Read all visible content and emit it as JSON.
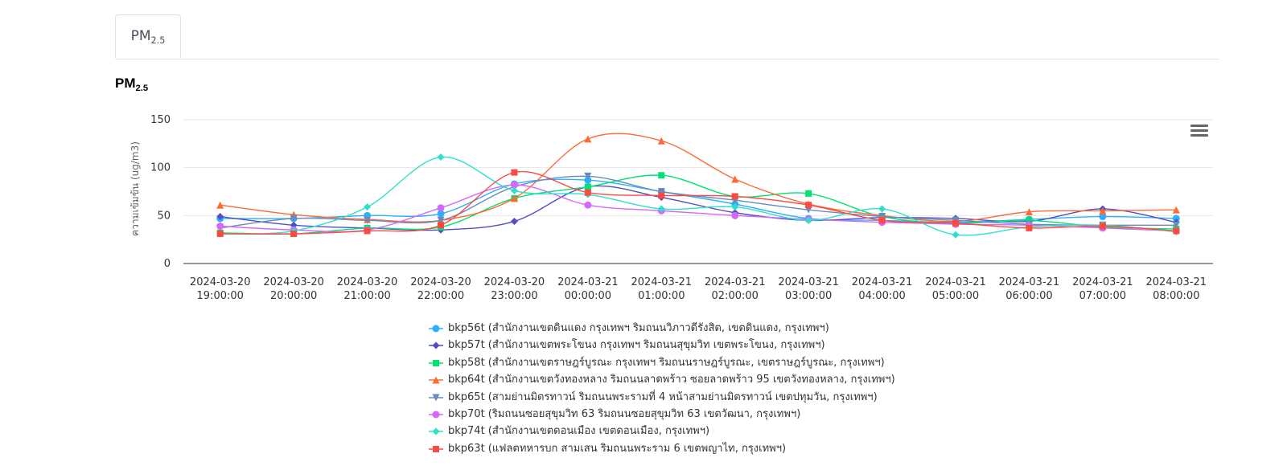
{
  "tab": {
    "label_base": "PM",
    "label_sub": "2.5"
  },
  "title": {
    "base": "PM",
    "sub": "2.5"
  },
  "chart_data": {
    "type": "line",
    "ylabel": "ความเข้มข้น (ug/m3)",
    "ylim": [
      0,
      150
    ],
    "yticks": [
      0,
      50,
      100,
      150
    ],
    "grid": true,
    "legend_position": "bottom",
    "categories": [
      [
        "2024-03-20",
        "19:00:00"
      ],
      [
        "2024-03-20",
        "20:00:00"
      ],
      [
        "2024-03-20",
        "21:00:00"
      ],
      [
        "2024-03-20",
        "22:00:00"
      ],
      [
        "2024-03-20",
        "23:00:00"
      ],
      [
        "2024-03-21",
        "00:00:00"
      ],
      [
        "2024-03-21",
        "01:00:00"
      ],
      [
        "2024-03-21",
        "02:00:00"
      ],
      [
        "2024-03-21",
        "03:00:00"
      ],
      [
        "2024-03-21",
        "04:00:00"
      ],
      [
        "2024-03-21",
        "05:00:00"
      ],
      [
        "2024-03-21",
        "06:00:00"
      ],
      [
        "2024-03-21",
        "07:00:00"
      ],
      [
        "2024-03-21",
        "08:00:00"
      ]
    ],
    "series": [
      {
        "name": "bkp56t (สำนักงานเขตดินแดง กรุงเทพฯ ริมถนนวิภาวดีรังสิต, เขตดินแดง, กรุงเทพฯ)",
        "color": "#2caffe",
        "marker": "circle",
        "values": [
          47,
          47,
          50,
          52,
          83,
          87,
          75,
          62,
          47,
          45,
          43,
          46,
          49,
          47
        ]
      },
      {
        "name": "bkp57t (สำนักงานเขตพระโขนง กรุงเทพฯ ริมถนนสุขุมวิท เขตพระโขนง, กรุงเทพฯ)",
        "color": "#544fc5",
        "marker": "diamond",
        "values": [
          49,
          40,
          37,
          35,
          44,
          80,
          69,
          53,
          45,
          48,
          47,
          44,
          57,
          43
        ]
      },
      {
        "name": "bkp58t (สำนักงานเขตราษฎร์บูรณะ กรุงเทพฯ ริมถนนราษฎร์บูรณะ, เขตราษฎร์บูรณะ, กรุงเทพฯ)",
        "color": "#00e272",
        "marker": "square",
        "values": [
          32,
          31,
          37,
          38,
          68,
          80,
          92,
          70,
          73,
          49,
          42,
          45,
          38,
          36
        ]
      },
      {
        "name": "bkp64t (สำนักงานเขตวังทองหลาง ริมถนนลาดพร้าว ซอยลาดพร้าว 95 เขตวังทองหลาง, กรุงเทพฯ)",
        "color": "#fe6a35",
        "marker": "triangle",
        "values": [
          61,
          51,
          46,
          45,
          68,
          130,
          128,
          88,
          62,
          50,
          44,
          54,
          55,
          56
        ]
      },
      {
        "name": "bkp65t (สามย่านมิตรทาวน์ ริมถนนพระรามที่ 4 หน้าสามย่านมิตรทาวน์ เขตปทุมวัน, กรุงเทพฯ)",
        "color": "#6b8abc",
        "marker": "triangle-down",
        "values": [
          37,
          47,
          45,
          45,
          80,
          91,
          75,
          66,
          56,
          49,
          45,
          41,
          40,
          40
        ]
      },
      {
        "name": "bkp70t (ริมถนนซอยสุขุมวิท 63 ริมถนนซอยสุขุมวิท 63 เขตวัฒนา, กรุงเทพฯ)",
        "color": "#d568fb",
        "marker": "circle",
        "values": [
          39,
          35,
          35,
          58,
          82,
          61,
          55,
          50,
          46,
          43,
          41,
          40,
          37,
          34
        ]
      },
      {
        "name": "bkp74t (สำนักงานเขตดอนเมือง เขตดอนเมือง, กรุงเทพฯ)",
        "color": "#2ee0ca",
        "marker": "diamond",
        "values": [
          31,
          34,
          59,
          111,
          76,
          72,
          57,
          59,
          45,
          57,
          30,
          38,
          40,
          33
        ]
      },
      {
        "name": "bkp63t (แฟลตทหารบก สามเสน ริมถนนพระราม 6 เขตพญาไท, กรุงเทพฯ)",
        "color": "#fa4b42",
        "marker": "square",
        "values": [
          31,
          31,
          34,
          40,
          95,
          74,
          71,
          70,
          61,
          45,
          42,
          37,
          39,
          34
        ]
      }
    ]
  }
}
